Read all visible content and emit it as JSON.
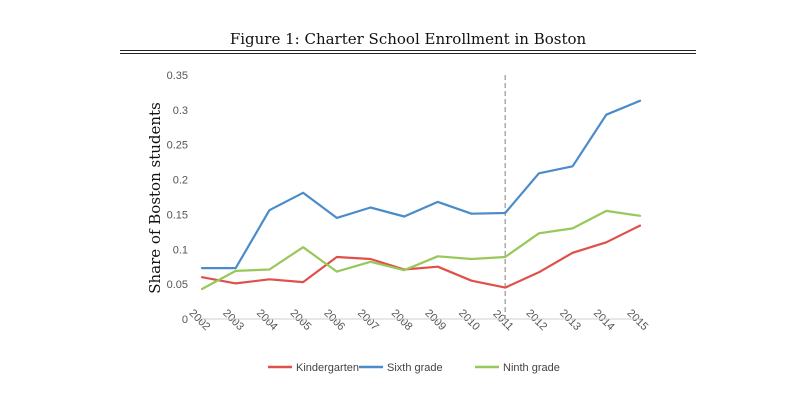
{
  "chart_data": {
    "type": "line",
    "title": "Figure 1: Charter School Enrollment in Boston",
    "xlabel": "",
    "ylabel": "Share of Boston students",
    "x": [
      "2002",
      "2003",
      "2004",
      "2005",
      "2006",
      "2007",
      "2008",
      "2009",
      "2010",
      "2011",
      "2012",
      "2013",
      "2014",
      "2015"
    ],
    "ylim": [
      0,
      0.35
    ],
    "yticks": [
      0,
      0.05,
      0.1,
      0.15,
      0.2,
      0.25,
      0.3,
      0.35
    ],
    "ytick_labels": [
      "0",
      "0.05",
      "0.1",
      "0.15",
      "0.2",
      "0.25",
      "0.3",
      "0.35"
    ],
    "grid": false,
    "legend_position": "bottom",
    "reference_line": {
      "x": "2011",
      "style": "dashed",
      "color": "#aaaaaa"
    },
    "series": [
      {
        "name": "Kindergarten",
        "color": "#e0504a",
        "values": [
          0.06,
          0.051,
          0.057,
          0.053,
          0.089,
          0.086,
          0.071,
          0.075,
          0.055,
          0.045,
          0.067,
          0.095,
          0.11,
          0.134
        ]
      },
      {
        "name": "Sixth grade",
        "color": "#4a8cc9",
        "values": [
          0.073,
          0.073,
          0.156,
          0.181,
          0.145,
          0.16,
          0.147,
          0.168,
          0.151,
          0.152,
          0.209,
          0.219,
          0.293,
          0.313
        ]
      },
      {
        "name": "Ninth grade",
        "color": "#98c75a",
        "values": [
          0.043,
          0.069,
          0.071,
          0.103,
          0.068,
          0.082,
          0.07,
          0.09,
          0.086,
          0.089,
          0.123,
          0.13,
          0.155,
          0.148
        ]
      }
    ]
  }
}
